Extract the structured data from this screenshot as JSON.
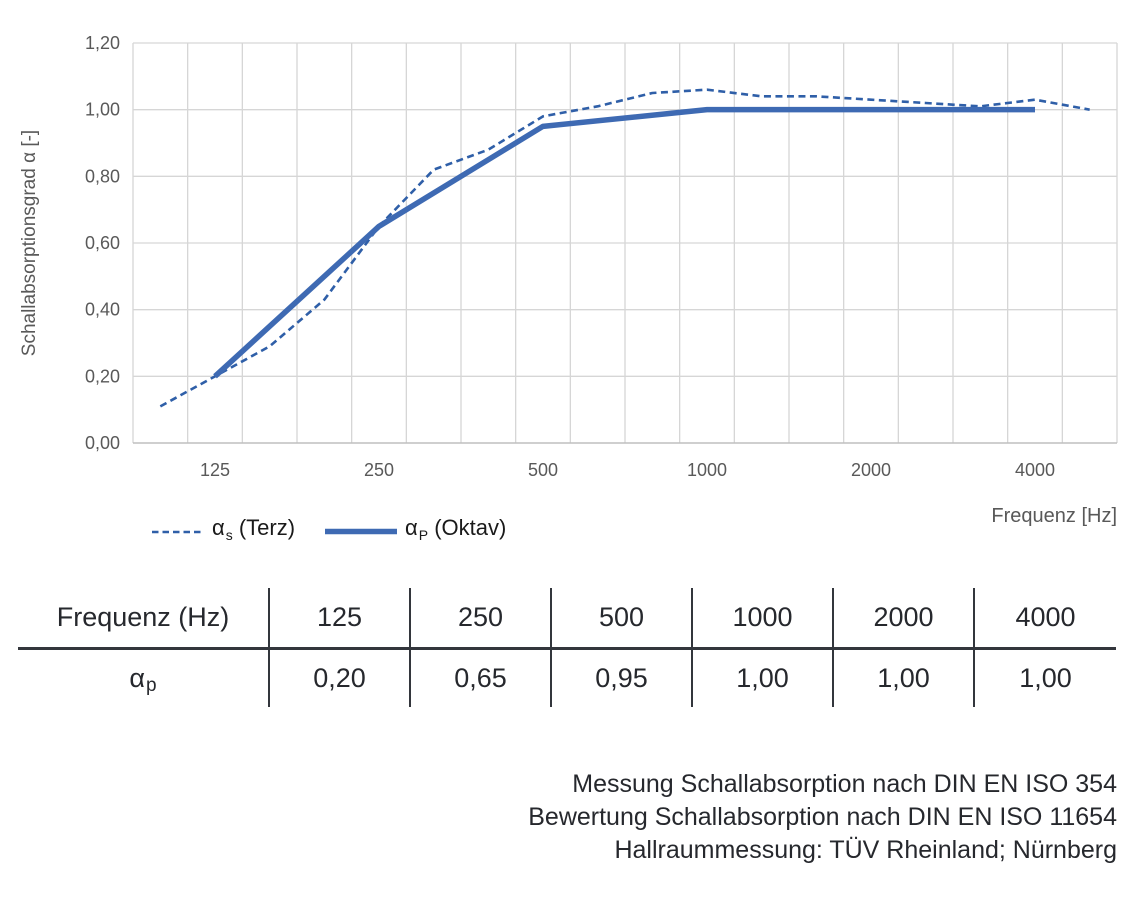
{
  "chart": {
    "y_axis": {
      "title": "Schallabsorptionsgrad α [-]",
      "tick_labels": [
        "1,20",
        "1,00",
        "0,80",
        "0,60",
        "0,40",
        "0,20",
        "0,00"
      ],
      "min": 0,
      "max": 1.2,
      "step": 0.2
    },
    "x_axis": {
      "title": "Frequenz [Hz]",
      "tick_labels": [
        "125",
        "250",
        "500",
        "1000",
        "2000",
        "4000"
      ]
    },
    "legend": [
      {
        "symbol": "α",
        "sub": "s",
        "rest": " (Terz)",
        "style": "dashed"
      },
      {
        "symbol": "α",
        "sub": "P",
        "rest": " (Oktav)",
        "style": "solid"
      }
    ],
    "colors": {
      "series_dashed": "#2F5FA8",
      "series_solid": "#3E6AB3",
      "grid": "#D6D6D6",
      "axis_line": "#BFBFBF",
      "axis_text": "#595959"
    }
  },
  "chart_data": {
    "type": "line",
    "x_scale": "logarithmic (third-octave categories)",
    "categories": [
      100,
      125,
      160,
      200,
      250,
      315,
      400,
      500,
      630,
      800,
      1000,
      1250,
      1600,
      2000,
      2500,
      3150,
      4000,
      5000
    ],
    "series": [
      {
        "name": "αs (Terz)",
        "style": "dashed",
        "x": [
          100,
          125,
          160,
          200,
          250,
          315,
          400,
          500,
          630,
          800,
          1000,
          1250,
          1600,
          2000,
          2500,
          3150,
          4000,
          5000
        ],
        "values": [
          0.11,
          0.2,
          0.29,
          0.43,
          0.65,
          0.82,
          0.88,
          0.98,
          1.01,
          1.05,
          1.06,
          1.04,
          1.04,
          1.03,
          1.02,
          1.01,
          1.03,
          1.0
        ]
      },
      {
        "name": "αP (Oktav)",
        "style": "solid",
        "x": [
          125,
          250,
          500,
          1000,
          2000,
          4000
        ],
        "values": [
          0.2,
          0.65,
          0.95,
          1.0,
          1.0,
          1.0
        ]
      }
    ],
    "title": "",
    "xlabel": "Frequenz [Hz]",
    "ylabel": "Schallabsorptionsgrad α [-]",
    "ylim": [
      0,
      1.2
    ],
    "grid": true,
    "legend_position": "bottom-left"
  },
  "table": {
    "header": [
      "Frequenz (Hz)",
      "125",
      "250",
      "500",
      "1000",
      "2000",
      "4000"
    ],
    "row_label": {
      "symbol": "α",
      "sub": "p"
    },
    "values": [
      "0,20",
      "0,65",
      "0,95",
      "1,00",
      "1,00",
      "1,00"
    ]
  },
  "notes": [
    "Messung Schallabsorption nach DIN EN ISO 354",
    "Bewertung Schallabsorption nach DIN EN ISO 11654",
    "Hallraummessung: TÜV Rheinland; Nürnberg"
  ]
}
